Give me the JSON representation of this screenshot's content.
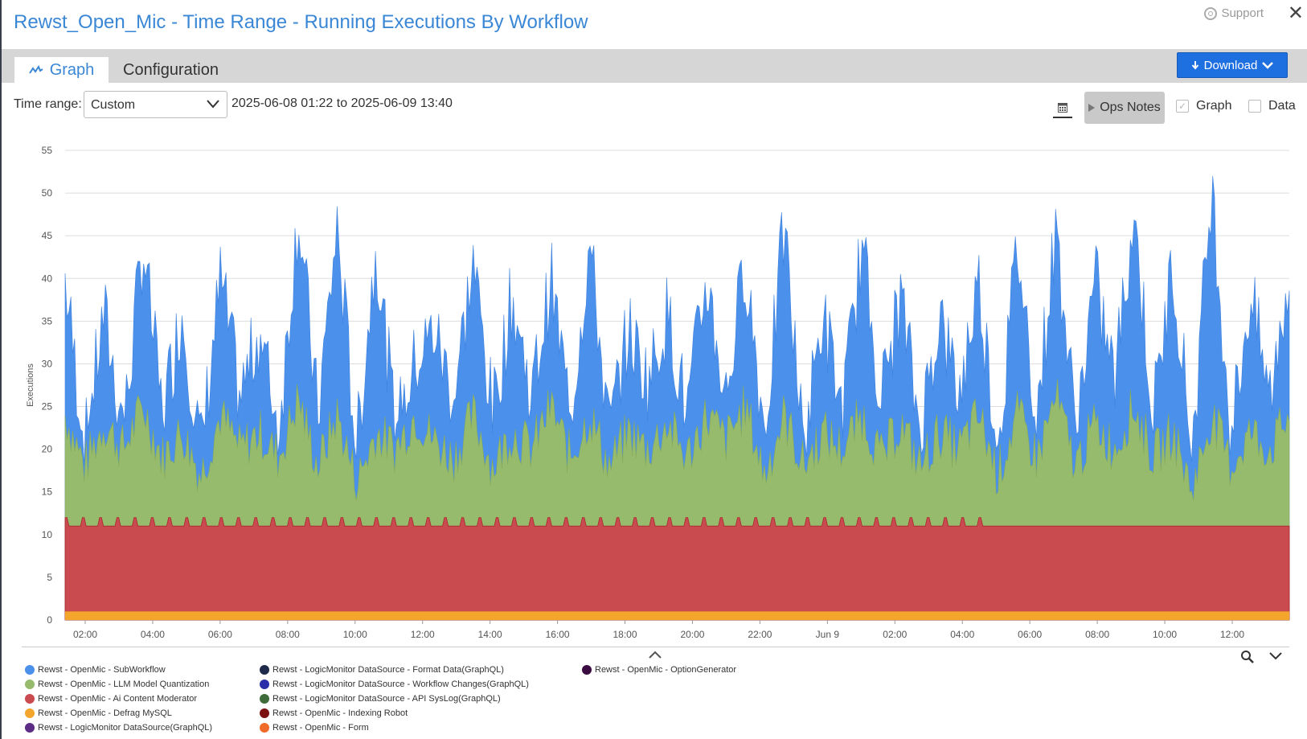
{
  "title": "Rewst_Open_Mic - Time Range - Running Executions By Workflow",
  "support_label": "Support",
  "close_glyph": "✕",
  "tabs": {
    "graph": "Graph",
    "configuration": "Configuration"
  },
  "download_label": "Download",
  "time_range": {
    "label": "Time range:",
    "selected": "Custom",
    "text": "2025-06-08 01:22 to 2025-06-09 13:40"
  },
  "ops_notes_label": "Ops Notes",
  "checkboxes": {
    "graph_label": "Graph",
    "graph_checked": true,
    "data_label": "Data",
    "data_checked": false
  },
  "icons": {
    "support": "support-icon",
    "close": "close-icon",
    "graph_tab": "line-chart-icon",
    "download": "download-arrow-icon",
    "calendar": "calendar-icon",
    "ops_notes": "play-triangle-icon",
    "zoom": "magnifier-icon",
    "collapse": "chevron-up-icon",
    "expand": "chevron-down-icon"
  },
  "colors": {
    "accent": "#3a87d6",
    "download_bg": "#1e6fe0",
    "series_subworkflow": "#4b90eb",
    "series_llm": "#97bb6c",
    "series_ai": "#c94a4f",
    "series_defrag": "#f3a62b",
    "series_lm_graphql": "#5b2d84"
  },
  "chart_data": {
    "type": "area",
    "stacked": true,
    "ylabel": "Executions",
    "ylim": [
      0,
      55
    ],
    "yticks": [
      0,
      5,
      10,
      15,
      20,
      25,
      30,
      35,
      40,
      45,
      50,
      55
    ],
    "x_range": [
      "2025-06-08 01:22",
      "2025-06-09 13:40"
    ],
    "x_tick_labels": [
      "02:00",
      "04:00",
      "06:00",
      "08:00",
      "10:00",
      "12:00",
      "14:00",
      "16:00",
      "18:00",
      "20:00",
      "22:00",
      "Jun 9",
      "02:00",
      "04:00",
      "06:00",
      "08:00",
      "10:00",
      "12:00"
    ],
    "grid": true,
    "series": [
      {
        "name": "Rewst - OpenMic - SubWorkflow",
        "color": "#4b90eb",
        "stacked_total_approx": [
          40,
          20,
          36,
          22,
          44,
          24,
          36,
          20,
          40,
          26,
          34,
          22,
          48,
          24,
          46,
          20,
          44,
          22,
          30,
          34,
          26,
          42,
          24,
          38,
          26,
          40,
          24,
          44,
          22,
          34,
          28,
          36,
          24,
          40,
          26,
          42,
          22,
          46,
          20,
          36,
          24,
          44,
          26,
          38,
          22,
          36,
          26,
          40,
          20,
          44,
          24,
          46,
          22,
          40,
          28,
          48,
          24,
          42,
          20,
          51,
          22,
          38,
          26,
          41
        ]
      },
      {
        "name": "Rewst - OpenMic - LLM Model Quantization",
        "color": "#97bb6c",
        "stacked_total_approx": [
          24,
          18,
          23,
          20,
          25,
          19,
          22,
          17,
          24,
          20,
          22,
          19,
          26,
          18,
          24,
          16,
          22,
          20,
          24,
          21,
          19,
          24,
          18,
          22,
          20,
          25,
          19,
          24,
          18,
          22,
          20,
          23,
          19,
          24,
          21,
          25,
          17,
          24,
          18,
          22,
          20,
          24,
          19,
          23,
          18,
          22,
          20,
          24,
          17,
          24,
          19,
          26,
          18,
          23,
          20,
          25,
          19,
          22,
          15,
          24,
          18,
          22,
          20,
          24
        ]
      },
      {
        "name": "Rewst - OpenMic - Ai Content Moderator",
        "color": "#c94a4f",
        "stacked_total_approx": [
          11,
          11,
          11,
          12,
          11,
          12,
          11,
          12,
          11,
          12,
          11,
          12,
          11,
          12,
          11,
          12,
          11,
          12,
          11,
          12,
          11,
          12,
          11,
          12,
          11,
          12,
          11,
          12,
          11,
          12,
          11,
          12,
          11,
          13,
          11,
          12,
          11,
          12,
          11,
          12,
          11,
          12,
          11,
          11,
          11,
          11,
          11,
          11,
          11,
          12,
          11,
          11,
          11,
          11,
          11,
          11,
          9,
          11,
          11,
          11,
          13,
          11,
          12,
          11
        ]
      },
      {
        "name": "Rewst - OpenMic - Defrag MySQL",
        "color": "#f3a62b",
        "constant_approx": 1,
        "spikes": [
          "11:50 (2)",
          "22:00 (2)",
          "00:10 (3)",
          "05:10 (2)",
          "06:00 (2)",
          "07:00 (2)",
          "08:00 (2)",
          "11:00 (3)"
        ]
      },
      {
        "name": "Rewst - LogicMonitor DataSource(GraphQL)",
        "color": "#5b2d84"
      },
      {
        "name": "Rewst - LogicMonitor DataSource - Format Data(GraphQL)",
        "color": "#1f2a4a"
      },
      {
        "name": "Rewst - LogicMonitor DataSource - Workflow Changes(GraphQL)",
        "color": "#2a2fa8"
      },
      {
        "name": "Rewst - LogicMonitor DataSource - API SysLog(GraphQL)",
        "color": "#3d6b3a"
      },
      {
        "name": "Rewst - OpenMic - Indexing Robot",
        "color": "#7a1010"
      },
      {
        "name": "Rewst - OpenMic - Form",
        "color": "#f06a2a"
      },
      {
        "name": "Rewst - OpenMic - OptionGenerator",
        "color": "#3a0a40"
      }
    ]
  },
  "legend": {
    "col1": [
      {
        "label": "Rewst - OpenMic - SubWorkflow",
        "color": "#4b90eb"
      },
      {
        "label": "Rewst - OpenMic - LLM Model Quantization",
        "color": "#97bb6c"
      },
      {
        "label": "Rewst - OpenMic - Ai Content Moderator",
        "color": "#c94a4f"
      },
      {
        "label": "Rewst - OpenMic - Defrag MySQL",
        "color": "#f3a62b"
      },
      {
        "label": "Rewst - LogicMonitor DataSource(GraphQL)",
        "color": "#5b2d84"
      }
    ],
    "col2": [
      {
        "label": "Rewst - LogicMonitor DataSource - Format Data(GraphQL)",
        "color": "#1f2a4a"
      },
      {
        "label": "Rewst - LogicMonitor DataSource - Workflow Changes(GraphQL)",
        "color": "#2a2fa8"
      },
      {
        "label": "Rewst - LogicMonitor DataSource - API SysLog(GraphQL)",
        "color": "#3d6b3a"
      },
      {
        "label": "Rewst - OpenMic - Indexing Robot",
        "color": "#7a1010"
      },
      {
        "label": "Rewst - OpenMic - Form",
        "color": "#f06a2a"
      }
    ],
    "col3": [
      {
        "label": "Rewst - OpenMic - OptionGenerator",
        "color": "#3a0a40"
      }
    ]
  }
}
